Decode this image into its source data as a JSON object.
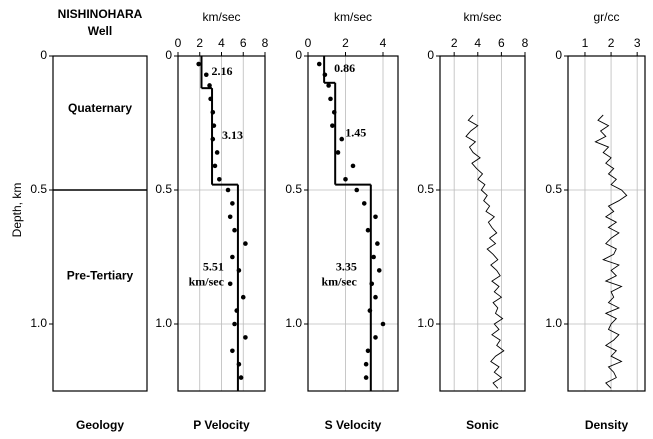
{
  "chart_data": [
    {
      "type": "geology",
      "title": "NISHINOHARA",
      "subtitle": "Well",
      "xlabel": "Geology",
      "ylabel": "Depth, km",
      "ylim": [
        0,
        1.25
      ],
      "yticks": [
        0,
        0.5,
        {
          "value": 1,
          "label": "1.0"
        }
      ],
      "grid": false,
      "units": [
        {
          "name": "Quaternary",
          "top": 0,
          "bottom": 0.5
        },
        {
          "name": "Pre-Tertiary",
          "top": 0.5,
          "bottom": 1.25
        }
      ]
    },
    {
      "type": "step",
      "axis_label": "km/sec",
      "xlabel": "P Velocity",
      "xlim": [
        0,
        8
      ],
      "xticks": [
        0,
        2,
        4,
        6,
        8
      ],
      "ylim": [
        0,
        1.25
      ],
      "yticks": [
        0,
        0.5,
        {
          "value": 1,
          "label": "1.0"
        }
      ],
      "grid": true,
      "steps": {
        "bounds": [
          0,
          0.12,
          0.48,
          1.25
        ],
        "values": [
          2.16,
          3.13,
          5.51
        ]
      },
      "value_units": "km/sec",
      "measured": {
        "depth": [
          0.03,
          0.07,
          0.11,
          0.16,
          0.21,
          0.26,
          0.31,
          0.36,
          0.41,
          0.46,
          0.5,
          0.55,
          0.6,
          0.65,
          0.7,
          0.75,
          0.8,
          0.85,
          0.9,
          0.95,
          1.0,
          1.05,
          1.1,
          1.15,
          1.2
        ],
        "values": [
          1.9,
          2.6,
          2.9,
          3.0,
          3.2,
          3.3,
          3.2,
          3.6,
          3.4,
          3.8,
          4.6,
          5.0,
          4.8,
          5.2,
          6.2,
          5.0,
          5.6,
          4.8,
          6.0,
          5.4,
          5.2,
          6.2,
          5.0,
          5.6,
          5.8
        ]
      }
    },
    {
      "type": "step",
      "axis_label": "km/sec",
      "xlabel": "S Velocity",
      "xlim": [
        0,
        4.8
      ],
      "xticks": [
        0,
        2,
        4
      ],
      "ylim": [
        0,
        1.25
      ],
      "yticks": [
        0,
        0.5,
        {
          "value": 1,
          "label": "1.0"
        }
      ],
      "grid": true,
      "steps": {
        "bounds": [
          0,
          0.1,
          0.48,
          1.25
        ],
        "values": [
          0.86,
          1.45,
          3.35
        ]
      },
      "value_units": "km/sec",
      "measured": {
        "depth": [
          0.03,
          0.07,
          0.11,
          0.16,
          0.21,
          0.26,
          0.31,
          0.36,
          0.41,
          0.46,
          0.5,
          0.55,
          0.6,
          0.65,
          0.7,
          0.75,
          0.8,
          0.85,
          0.9,
          0.95,
          1.0,
          1.05,
          1.1,
          1.15,
          1.2
        ],
        "values": [
          0.6,
          0.9,
          1.1,
          1.2,
          1.4,
          1.3,
          1.8,
          1.6,
          2.4,
          2.0,
          2.6,
          3.0,
          3.6,
          3.2,
          3.7,
          3.5,
          3.8,
          3.4,
          3.6,
          3.3,
          4.0,
          3.6,
          3.2,
          3.1,
          3.1
        ]
      }
    },
    {
      "type": "log",
      "axis_label": "km/sec",
      "xlabel": "Sonic",
      "xlim": [
        0.8,
        8
      ],
      "xticks": [
        2,
        4,
        6,
        8
      ],
      "ylim": [
        0,
        1.25
      ],
      "yticks": [
        0,
        0.5,
        {
          "value": 1,
          "label": "1.0"
        }
      ],
      "grid": true,
      "depth": [
        0.22,
        0.24,
        0.26,
        0.28,
        0.3,
        0.32,
        0.34,
        0.36,
        0.38,
        0.4,
        0.42,
        0.44,
        0.46,
        0.48,
        0.5,
        0.52,
        0.54,
        0.56,
        0.58,
        0.6,
        0.62,
        0.64,
        0.66,
        0.68,
        0.7,
        0.72,
        0.74,
        0.76,
        0.78,
        0.8,
        0.82,
        0.84,
        0.86,
        0.88,
        0.9,
        0.92,
        0.94,
        0.96,
        0.98,
        1.0,
        1.02,
        1.04,
        1.06,
        1.08,
        1.1,
        1.12,
        1.14,
        1.16,
        1.18,
        1.2,
        1.22,
        1.24
      ],
      "values": [
        3.6,
        3.2,
        4.0,
        3.4,
        3.0,
        3.8,
        3.3,
        3.6,
        4.2,
        3.5,
        3.9,
        4.4,
        4.0,
        4.6,
        4.3,
        4.8,
        4.5,
        5.0,
        4.7,
        5.4,
        4.9,
        5.2,
        5.6,
        5.0,
        5.5,
        4.8,
        5.3,
        5.7,
        5.1,
        5.6,
        5.9,
        5.2,
        5.8,
        5.4,
        6.0,
        5.3,
        5.7,
        5.5,
        6.1,
        5.4,
        5.8,
        5.2,
        5.9,
        5.6,
        6.2,
        5.5,
        5.1,
        5.8,
        5.4,
        6.0,
        5.3,
        5.7
      ]
    },
    {
      "type": "log",
      "axis_label": "gr/cc",
      "xlabel": "Density",
      "xlim": [
        0.35,
        3.3
      ],
      "xticks": [
        1,
        2,
        3
      ],
      "ylim": [
        0,
        1.25
      ],
      "yticks": [
        0,
        0.5,
        {
          "value": 1,
          "label": "1.0"
        }
      ],
      "grid": true,
      "depth": [
        0.22,
        0.24,
        0.26,
        0.28,
        0.3,
        0.32,
        0.34,
        0.36,
        0.38,
        0.4,
        0.42,
        0.44,
        0.46,
        0.48,
        0.5,
        0.52,
        0.54,
        0.56,
        0.58,
        0.6,
        0.62,
        0.64,
        0.66,
        0.68,
        0.7,
        0.72,
        0.74,
        0.76,
        0.78,
        0.8,
        0.82,
        0.84,
        0.86,
        0.88,
        0.9,
        0.92,
        0.94,
        0.96,
        0.98,
        1.0,
        1.02,
        1.04,
        1.06,
        1.08,
        1.1,
        1.12,
        1.14,
        1.16,
        1.18,
        1.2,
        1.22,
        1.24
      ],
      "values": [
        1.7,
        1.5,
        1.9,
        1.6,
        1.8,
        1.4,
        1.9,
        1.7,
        2.0,
        1.8,
        2.1,
        1.9,
        2.2,
        2.0,
        2.4,
        2.6,
        2.3,
        1.9,
        2.1,
        1.8,
        2.2,
        1.9,
        2.3,
        2.0,
        1.8,
        2.2,
        2.1,
        1.7,
        2.3,
        2.0,
        2.2,
        1.8,
        2.4,
        2.0,
        2.1,
        1.9,
        2.3,
        1.8,
        2.2,
        2.0,
        1.9,
        2.3,
        2.1,
        1.8,
        2.2,
        2.0,
        2.4,
        1.9,
        2.1,
        2.2,
        1.8,
        2.0
      ]
    }
  ]
}
